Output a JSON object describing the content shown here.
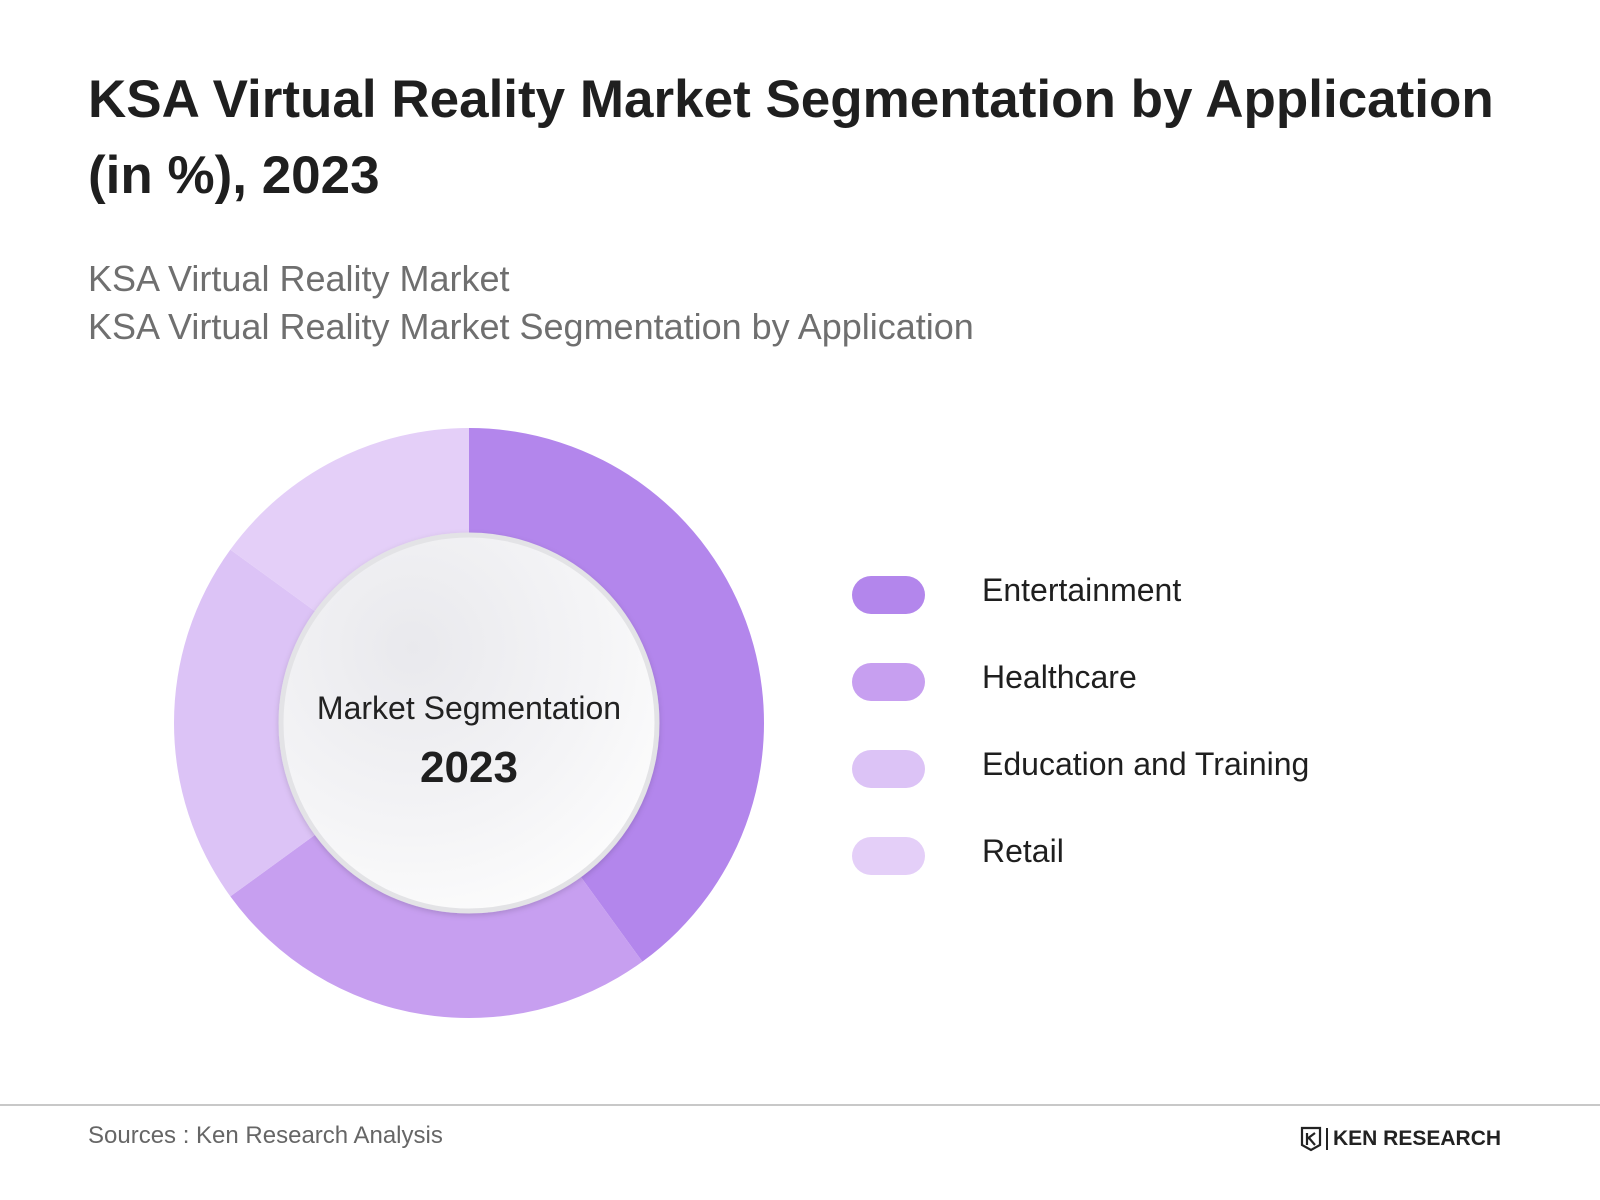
{
  "header": {
    "title": "KSA Virtual Reality Market Segmentation by Application (in %), 2023",
    "subtitle_line1": "KSA Virtual Reality Market",
    "subtitle_line2": "KSA Virtual Reality Market Segmentation by Application"
  },
  "chart_data": {
    "type": "pie",
    "variant": "donut",
    "title": "KSA Virtual Reality Market Segmentation by Application (in %), 2023",
    "center_label": "Market Segmentation",
    "center_year": "2023",
    "categories": [
      "Entertainment",
      "Healthcare",
      "Education and Training",
      "Retail"
    ],
    "values": [
      40,
      25,
      20,
      15
    ],
    "colors": [
      "#b386ec",
      "#c79ff0",
      "#dcc3f6",
      "#e4cff8"
    ],
    "legend_position": "right"
  },
  "footer": {
    "source": "Sources : Ken Research Analysis",
    "brand": "KEN RESEARCH"
  }
}
